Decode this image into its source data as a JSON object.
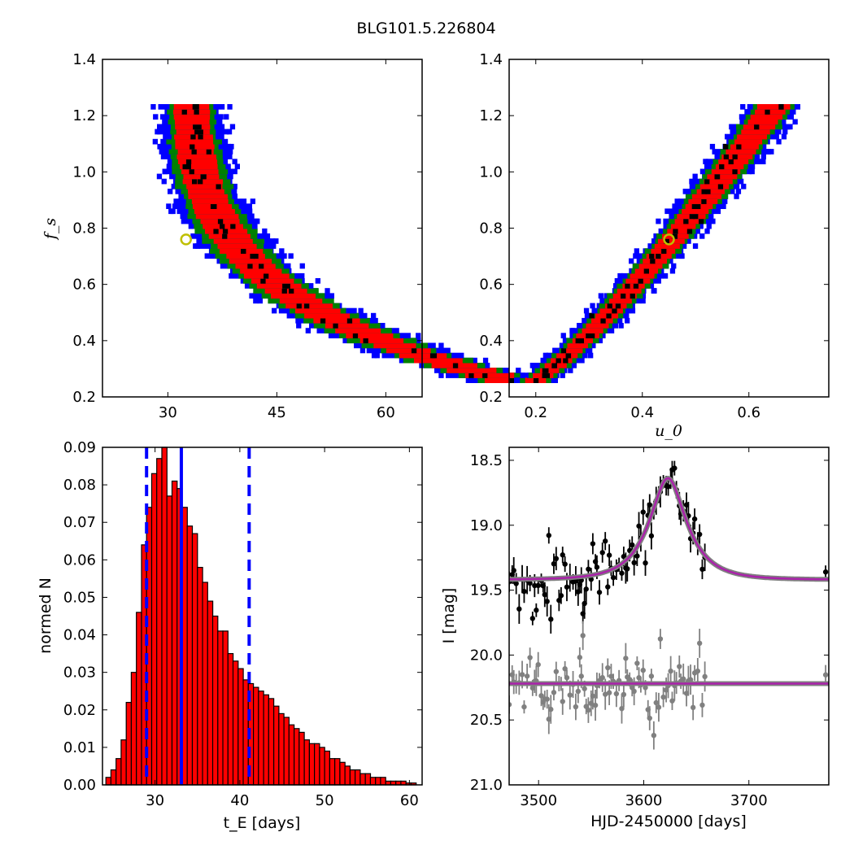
{
  "figure_title": "BLG101.5.226804",
  "chart_data": [
    {
      "type": "heatmap",
      "panel": "fs-vs-tE",
      "xlabel": "",
      "ylabel": "f_s",
      "xlim": [
        21,
        65
      ],
      "ylim": [
        0.2,
        1.4
      ],
      "xticks": [
        30,
        45,
        60
      ],
      "yticks": [
        0.2,
        0.4,
        0.6,
        0.8,
        1.0,
        1.2,
        1.4
      ],
      "xtick_labels": [
        "30",
        "45",
        "60"
      ],
      "ytick_labels": [
        "0.2",
        "0.4",
        "0.6",
        "0.8",
        "1.0",
        "1.2",
        "1.4"
      ],
      "levels_color": {
        "outer": "#0000ff",
        "mid": "#008000",
        "inner": "#ff0000",
        "core": "#000000"
      },
      "marker": {
        "x": 32.5,
        "y": 0.76,
        "color": "#bfbf00"
      }
    },
    {
      "type": "heatmap",
      "panel": "fs-vs-u0",
      "xlabel": "u_0",
      "ylabel": "",
      "xlim": [
        0.15,
        0.75
      ],
      "ylim": [
        0.2,
        1.4
      ],
      "xticks": [
        0.2,
        0.4,
        0.6
      ],
      "yticks": [
        0.2,
        0.4,
        0.6,
        0.8,
        1.0,
        1.2,
        1.4
      ],
      "xtick_labels": [
        "0.2",
        "0.4",
        "0.6"
      ],
      "ytick_labels": [
        "0.2",
        "0.4",
        "0.6",
        "0.8",
        "1.0",
        "1.2",
        "1.4"
      ],
      "levels_color": {
        "outer": "#0000ff",
        "mid": "#008000",
        "inner": "#ff0000",
        "core": "#000000"
      },
      "marker": {
        "x": 0.45,
        "y": 0.76,
        "color": "#bfbf00"
      }
    },
    {
      "type": "bar",
      "panel": "tE-histogram",
      "xlabel": "t_E  [days]",
      "ylabel": "normed N",
      "xlim": [
        23.8,
        61.5
      ],
      "ylim": [
        0,
        0.09
      ],
      "xticks": [
        30,
        40,
        50,
        60
      ],
      "yticks": [
        0,
        0.01,
        0.02,
        0.03,
        0.04,
        0.05,
        0.06,
        0.07,
        0.08,
        0.09
      ],
      "xtick_labels": [
        "30",
        "40",
        "50",
        "60"
      ],
      "ytick_labels": [
        "0.00",
        "0.01",
        "0.02",
        "0.03",
        "0.04",
        "0.05",
        "0.06",
        "0.07",
        "0.08",
        "0.09"
      ],
      "bin_start": 24.2,
      "bin_width": 0.6,
      "values": [
        0.002,
        0.004,
        0.007,
        0.012,
        0.022,
        0.03,
        0.046,
        0.064,
        0.074,
        0.083,
        0.087,
        0.09,
        0.077,
        0.081,
        0.079,
        0.074,
        0.069,
        0.067,
        0.058,
        0.054,
        0.049,
        0.045,
        0.041,
        0.041,
        0.035,
        0.033,
        0.031,
        0.028,
        0.027,
        0.026,
        0.025,
        0.024,
        0.023,
        0.021,
        0.019,
        0.018,
        0.016,
        0.015,
        0.014,
        0.012,
        0.011,
        0.011,
        0.01,
        0.009,
        0.007,
        0.007,
        0.006,
        0.005,
        0.004,
        0.004,
        0.003,
        0.003,
        0.002,
        0.002,
        0.002,
        0.001,
        0.001,
        0.001,
        0.001,
        0.0005,
        0.0005
      ],
      "bar_color": "#ff0000",
      "median_line": 33.1,
      "interval_lines": [
        29.0,
        41.1
      ],
      "line_color": "#0000ff"
    },
    {
      "type": "scatter",
      "panel": "light-curve",
      "xlabel": "HJD-2450000 [days]",
      "ylabel": "I [mag]",
      "xlim": [
        3472,
        3776
      ],
      "ylim": [
        21.0,
        18.4
      ],
      "xticks": [
        3500,
        3600,
        3700
      ],
      "yticks": [
        18.5,
        19.0,
        19.5,
        20.0,
        20.5,
        21.0
      ],
      "xtick_labels": [
        "3500",
        "3600",
        "3700"
      ],
      "ytick_labels": [
        "18.5",
        "19.0",
        "19.5",
        "20.0",
        "20.5",
        "21.0"
      ],
      "model": {
        "t0": 3623,
        "tE": 33.1,
        "u0": 0.45,
        "fs": 0.76,
        "baseline": 19.42,
        "color": "#aa22aa"
      },
      "residual_baseline": 20.22,
      "data_color": "#000000",
      "residual_color": "#808080"
    }
  ]
}
